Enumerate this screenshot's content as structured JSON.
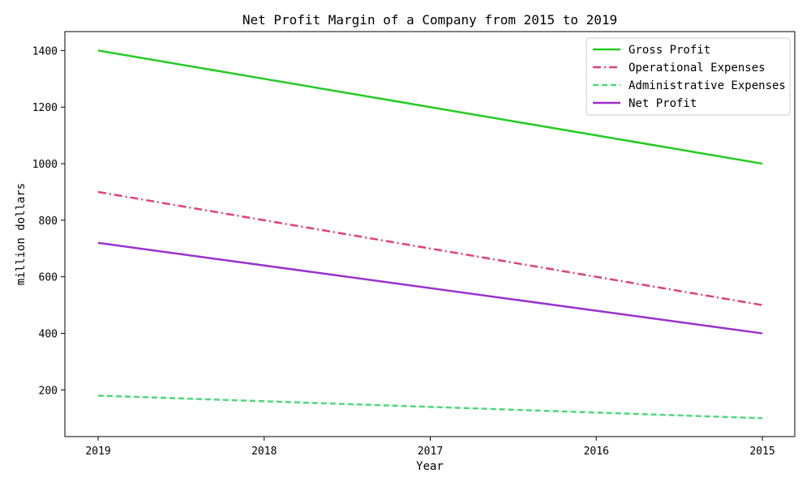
{
  "chart_data": {
    "type": "line",
    "title": "Net Profit Margin of a Company from 2015 to 2019",
    "xlabel": "Year",
    "ylabel": "million dollars",
    "categories": [
      "2019",
      "2018",
      "2017",
      "2016",
      "2015"
    ],
    "yticks": [
      200,
      400,
      600,
      800,
      1000,
      1200,
      1400
    ],
    "ylim": [
      35,
      1467
    ],
    "grid": false,
    "legend_position": "top-right",
    "series": [
      {
        "name": "Gross Profit",
        "values": [
          1400,
          1300,
          1200,
          1100,
          1000
        ],
        "color": "#22cc22",
        "dash": "solid"
      },
      {
        "name": "Operational Expenses",
        "values": [
          900,
          800,
          700,
          600,
          500
        ],
        "color": "#e0407a",
        "dash": "dashdot"
      },
      {
        "name": "Administrative Expenses",
        "values": [
          180,
          160,
          140,
          120,
          100
        ],
        "color": "#4cd97a",
        "dash": "dashed"
      },
      {
        "name": "Net Profit",
        "values": [
          720,
          640,
          560,
          480,
          400
        ],
        "color": "#9b30d0",
        "dash": "solid"
      }
    ]
  }
}
